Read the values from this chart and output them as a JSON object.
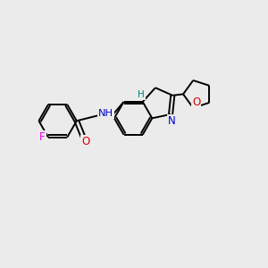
{
  "bg_color": "#ebebeb",
  "bond_color": "#000000",
  "atom_colors": {
    "F": "#ee00ee",
    "O": "#dd0000",
    "N": "#0000cc",
    "H_color": "#008080",
    "C_label": "#000000"
  },
  "bond_width": 1.4,
  "figsize": [
    3.0,
    3.0
  ],
  "dpi": 100
}
